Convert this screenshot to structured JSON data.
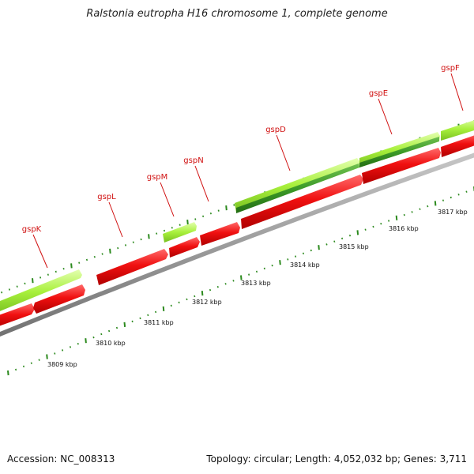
{
  "title": "Ralstonia eutropha H16 chromosome 1, complete genome",
  "footer": {
    "accession_label": "Accession: NC_008313",
    "topology_label": "Topology: circular; Length: 4,052,032 bp; Genes: 3,711"
  },
  "colors": {
    "gene_red": "#f01010",
    "gene_lime": "#a8f03c",
    "gene_green": "#3c9a28",
    "backbone": "#8c8c8c",
    "tick": "#2c8a1e",
    "label_red": "#d01010"
  },
  "gene_labels": [
    "gspK",
    "gspL",
    "gspM",
    "gspN",
    "gspD",
    "gspE",
    "gspF"
  ],
  "kbp_labels": [
    "3809 kbp",
    "3810 kbp",
    "3811 kbp",
    "3812 kbp",
    "3813 kbp",
    "3814 kbp",
    "3815 kbp",
    "3816 kbp",
    "3817 kbp"
  ]
}
